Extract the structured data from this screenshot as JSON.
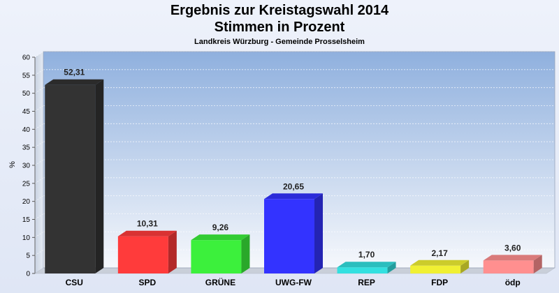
{
  "chart_data": {
    "type": "bar",
    "title": "Ergebnis zur Kreistagswahl 2014",
    "title2": "Stimmen in Prozent",
    "subtitle": "Landkreis Würzburg - Gemeinde Prosselsheim",
    "ylabel": "%",
    "xlabel": "",
    "ylim": [
      0,
      60
    ],
    "yticks": [
      0,
      5,
      10,
      15,
      20,
      25,
      30,
      35,
      40,
      45,
      50,
      55,
      60
    ],
    "categories": [
      "CSU",
      "SPD",
      "GRÜNE",
      "UWG-FW",
      "REP",
      "FDP",
      "ödp"
    ],
    "values": [
      52.31,
      10.31,
      9.26,
      20.65,
      1.7,
      2.17,
      3.6
    ],
    "value_labels": [
      "52,31",
      "10,31",
      "9,26",
      "20,65",
      "1,70",
      "2,17",
      "3,60"
    ],
    "colors": [
      "#333333",
      "#ff3b3b",
      "#3cf03c",
      "#3333ff",
      "#33e0e0",
      "#f0f033",
      "#ff8f8f"
    ],
    "grid": true,
    "legend": "none"
  }
}
